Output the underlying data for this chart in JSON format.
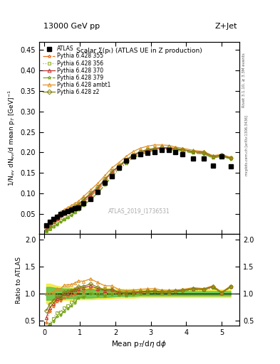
{
  "title_top": "13000 GeV pp",
  "title_right": "Z+Jet",
  "plot_title": "Scalar Σ(pₜ) (ATLAS UE in Z production)",
  "watermark": "ATLAS_2019_I1736531",
  "right_label_top": "Rivet 3.1.10, ≥ 3.3M events",
  "right_label_bot": "mcplots.cern.ch [arXiv:1306.3436]",
  "ylabel_main": "1/N$_{ev}$ dN$_{ev}$/d mean p$_T$ [GeV]$^{-1}$",
  "ylabel_ratio": "Ratio to ATLAS",
  "xlabel": "Mean p$_T$/d$\\eta$ d$\\phi$",
  "ylim_main": [
    0.0,
    0.47
  ],
  "ylim_ratio": [
    0.4,
    2.1
  ],
  "yticks_main": [
    0.05,
    0.1,
    0.15,
    0.2,
    0.25,
    0.3,
    0.35,
    0.4,
    0.45
  ],
  "yticks_ratio": [
    0.5,
    1.0,
    1.5,
    2.0
  ],
  "xlim": [
    -0.15,
    5.5
  ],
  "xticks": [
    0,
    1,
    2,
    3,
    4,
    5
  ],
  "atlas_x": [
    0.05,
    0.15,
    0.25,
    0.35,
    0.45,
    0.55,
    0.65,
    0.75,
    0.85,
    0.95,
    1.1,
    1.3,
    1.5,
    1.7,
    1.9,
    2.1,
    2.3,
    2.5,
    2.7,
    2.9,
    3.1,
    3.3,
    3.5,
    3.7,
    3.9,
    4.2,
    4.5,
    4.75,
    5.0,
    5.25
  ],
  "atlas_y": [
    0.022,
    0.03,
    0.037,
    0.042,
    0.05,
    0.052,
    0.056,
    0.06,
    0.063,
    0.065,
    0.075,
    0.085,
    0.103,
    0.125,
    0.142,
    0.163,
    0.18,
    0.19,
    0.195,
    0.198,
    0.2,
    0.205,
    0.205,
    0.2,
    0.195,
    0.185,
    0.185,
    0.168,
    0.19,
    0.165
  ],
  "pythia_x": [
    0.05,
    0.15,
    0.25,
    0.35,
    0.45,
    0.55,
    0.65,
    0.75,
    0.85,
    0.95,
    1.1,
    1.3,
    1.5,
    1.7,
    1.9,
    2.1,
    2.3,
    2.5,
    2.7,
    2.9,
    3.1,
    3.3,
    3.5,
    3.7,
    3.9,
    4.2,
    4.5,
    4.75,
    5.0,
    5.25
  ],
  "p355_y": [
    0.01,
    0.02,
    0.028,
    0.036,
    0.043,
    0.048,
    0.053,
    0.058,
    0.062,
    0.067,
    0.078,
    0.093,
    0.108,
    0.127,
    0.148,
    0.162,
    0.178,
    0.19,
    0.197,
    0.203,
    0.207,
    0.21,
    0.21,
    0.208,
    0.205,
    0.2,
    0.198,
    0.188,
    0.192,
    0.185
  ],
  "p355_color": "#e07020",
  "p355_style": "-.",
  "p355_marker": "*",
  "p356_y": [
    0.008,
    0.013,
    0.02,
    0.027,
    0.033,
    0.038,
    0.043,
    0.05,
    0.055,
    0.062,
    0.073,
    0.088,
    0.103,
    0.122,
    0.142,
    0.16,
    0.175,
    0.188,
    0.196,
    0.202,
    0.206,
    0.208,
    0.208,
    0.207,
    0.205,
    0.2,
    0.198,
    0.188,
    0.193,
    0.186
  ],
  "p356_color": "#90b030",
  "p356_style": ":",
  "p356_marker": "s",
  "p370_y": [
    0.012,
    0.022,
    0.03,
    0.038,
    0.046,
    0.052,
    0.056,
    0.062,
    0.067,
    0.071,
    0.083,
    0.097,
    0.112,
    0.132,
    0.152,
    0.165,
    0.18,
    0.192,
    0.2,
    0.205,
    0.208,
    0.21,
    0.21,
    0.208,
    0.206,
    0.202,
    0.2,
    0.19,
    0.193,
    0.186
  ],
  "p370_color": "#c03030",
  "p370_style": "-",
  "p370_marker": "^",
  "p379_y": [
    0.008,
    0.013,
    0.018,
    0.024,
    0.03,
    0.035,
    0.04,
    0.046,
    0.052,
    0.06,
    0.07,
    0.085,
    0.1,
    0.12,
    0.14,
    0.158,
    0.173,
    0.186,
    0.194,
    0.2,
    0.205,
    0.207,
    0.207,
    0.205,
    0.203,
    0.198,
    0.196,
    0.186,
    0.19,
    0.184
  ],
  "p379_color": "#70a010",
  "p379_style": "-.",
  "p379_marker": "*",
  "pambt1_y": [
    0.022,
    0.03,
    0.038,
    0.046,
    0.054,
    0.06,
    0.065,
    0.07,
    0.075,
    0.08,
    0.092,
    0.108,
    0.124,
    0.143,
    0.162,
    0.175,
    0.19,
    0.202,
    0.21,
    0.215,
    0.218,
    0.218,
    0.217,
    0.213,
    0.21,
    0.205,
    0.202,
    0.192,
    0.195,
    0.188
  ],
  "pambt1_color": "#e09020",
  "pambt1_style": "-",
  "pambt1_marker": "^",
  "pz2_y": [
    0.015,
    0.024,
    0.032,
    0.04,
    0.047,
    0.053,
    0.058,
    0.063,
    0.068,
    0.073,
    0.085,
    0.1,
    0.115,
    0.134,
    0.153,
    0.167,
    0.182,
    0.194,
    0.202,
    0.207,
    0.21,
    0.212,
    0.212,
    0.21,
    0.207,
    0.202,
    0.2,
    0.19,
    0.193,
    0.186
  ],
  "pz2_color": "#808010",
  "pz2_style": "-",
  "pz2_marker": "D",
  "band_yellow_lo": [
    0.82,
    0.82,
    0.84,
    0.86,
    0.87,
    0.88,
    0.88,
    0.88,
    0.89,
    0.89,
    0.89,
    0.89,
    0.9,
    0.9,
    0.91,
    0.92,
    0.92,
    0.92,
    0.93,
    0.93,
    0.93,
    0.93,
    0.93,
    0.93,
    0.93,
    0.93,
    0.93,
    0.93,
    0.93,
    0.93
  ],
  "band_yellow_hi": [
    1.18,
    1.18,
    1.16,
    1.14,
    1.13,
    1.12,
    1.12,
    1.12,
    1.11,
    1.11,
    1.11,
    1.11,
    1.1,
    1.1,
    1.09,
    1.08,
    1.08,
    1.08,
    1.07,
    1.07,
    1.07,
    1.07,
    1.07,
    1.07,
    1.07,
    1.07,
    1.07,
    1.07,
    1.07,
    1.07
  ],
  "band_green_lo": [
    0.88,
    0.88,
    0.89,
    0.9,
    0.9,
    0.91,
    0.91,
    0.91,
    0.92,
    0.92,
    0.92,
    0.92,
    0.93,
    0.93,
    0.94,
    0.95,
    0.95,
    0.95,
    0.96,
    0.96,
    0.96,
    0.96,
    0.96,
    0.96,
    0.96,
    0.96,
    0.96,
    0.96,
    0.96,
    0.96
  ],
  "band_green_hi": [
    1.12,
    1.12,
    1.11,
    1.1,
    1.1,
    1.09,
    1.09,
    1.09,
    1.08,
    1.08,
    1.08,
    1.08,
    1.07,
    1.07,
    1.06,
    1.05,
    1.05,
    1.05,
    1.04,
    1.04,
    1.04,
    1.04,
    1.04,
    1.04,
    1.04,
    1.04,
    1.04,
    1.04,
    1.04,
    1.04
  ]
}
